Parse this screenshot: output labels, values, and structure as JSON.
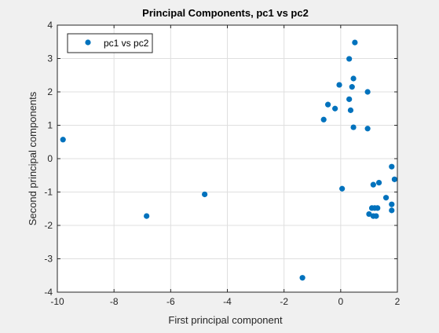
{
  "window": {
    "background": "#f0f0f0"
  },
  "chart_data": {
    "type": "scatter",
    "title": "Principal Components, pc1 vs pc2",
    "xlabel": "First principal component",
    "ylabel": "Second principal components",
    "xlim": [
      -10,
      2
    ],
    "ylim": [
      -4,
      4
    ],
    "xticks": [
      -10,
      -8,
      -6,
      -4,
      -2,
      0,
      2
    ],
    "yticks": [
      -4,
      -3,
      -2,
      -1,
      0,
      1,
      2,
      3,
      4
    ],
    "xtick_labels": [
      "-10",
      "-8",
      "-6",
      "-4",
      "-2",
      "0",
      "2"
    ],
    "ytick_labels": [
      "-4",
      "-3",
      "-2",
      "-1",
      "0",
      "1",
      "2",
      "3",
      "4"
    ],
    "grid": true,
    "legend": {
      "placement": "top-left",
      "entries": [
        "pc1 vs pc2"
      ]
    },
    "marker_color": "#0072bd",
    "series": [
      {
        "name": "pc1 vs pc2",
        "points": [
          [
            -9.8,
            0.57
          ],
          [
            -6.85,
            -1.72
          ],
          [
            -4.8,
            -1.07
          ],
          [
            -1.35,
            -3.57
          ],
          [
            0.5,
            3.48
          ],
          [
            0.3,
            2.99
          ],
          [
            0.45,
            2.4
          ],
          [
            -0.05,
            2.21
          ],
          [
            0.4,
            2.15
          ],
          [
            0.95,
            2.0
          ],
          [
            0.3,
            1.78
          ],
          [
            -0.45,
            1.62
          ],
          [
            -0.2,
            1.5
          ],
          [
            0.35,
            1.45
          ],
          [
            -0.6,
            1.17
          ],
          [
            0.45,
            0.94
          ],
          [
            0.95,
            0.9
          ],
          [
            0.05,
            -0.9
          ],
          [
            1.8,
            -0.24
          ],
          [
            1.9,
            -0.62
          ],
          [
            1.35,
            -0.72
          ],
          [
            1.15,
            -0.78
          ],
          [
            1.6,
            -1.17
          ],
          [
            1.8,
            -1.37
          ],
          [
            1.1,
            -1.48
          ],
          [
            1.2,
            -1.48
          ],
          [
            1.3,
            -1.48
          ],
          [
            1.8,
            -1.55
          ],
          [
            1.0,
            -1.66
          ],
          [
            1.15,
            -1.72
          ],
          [
            1.25,
            -1.72
          ]
        ]
      }
    ]
  }
}
